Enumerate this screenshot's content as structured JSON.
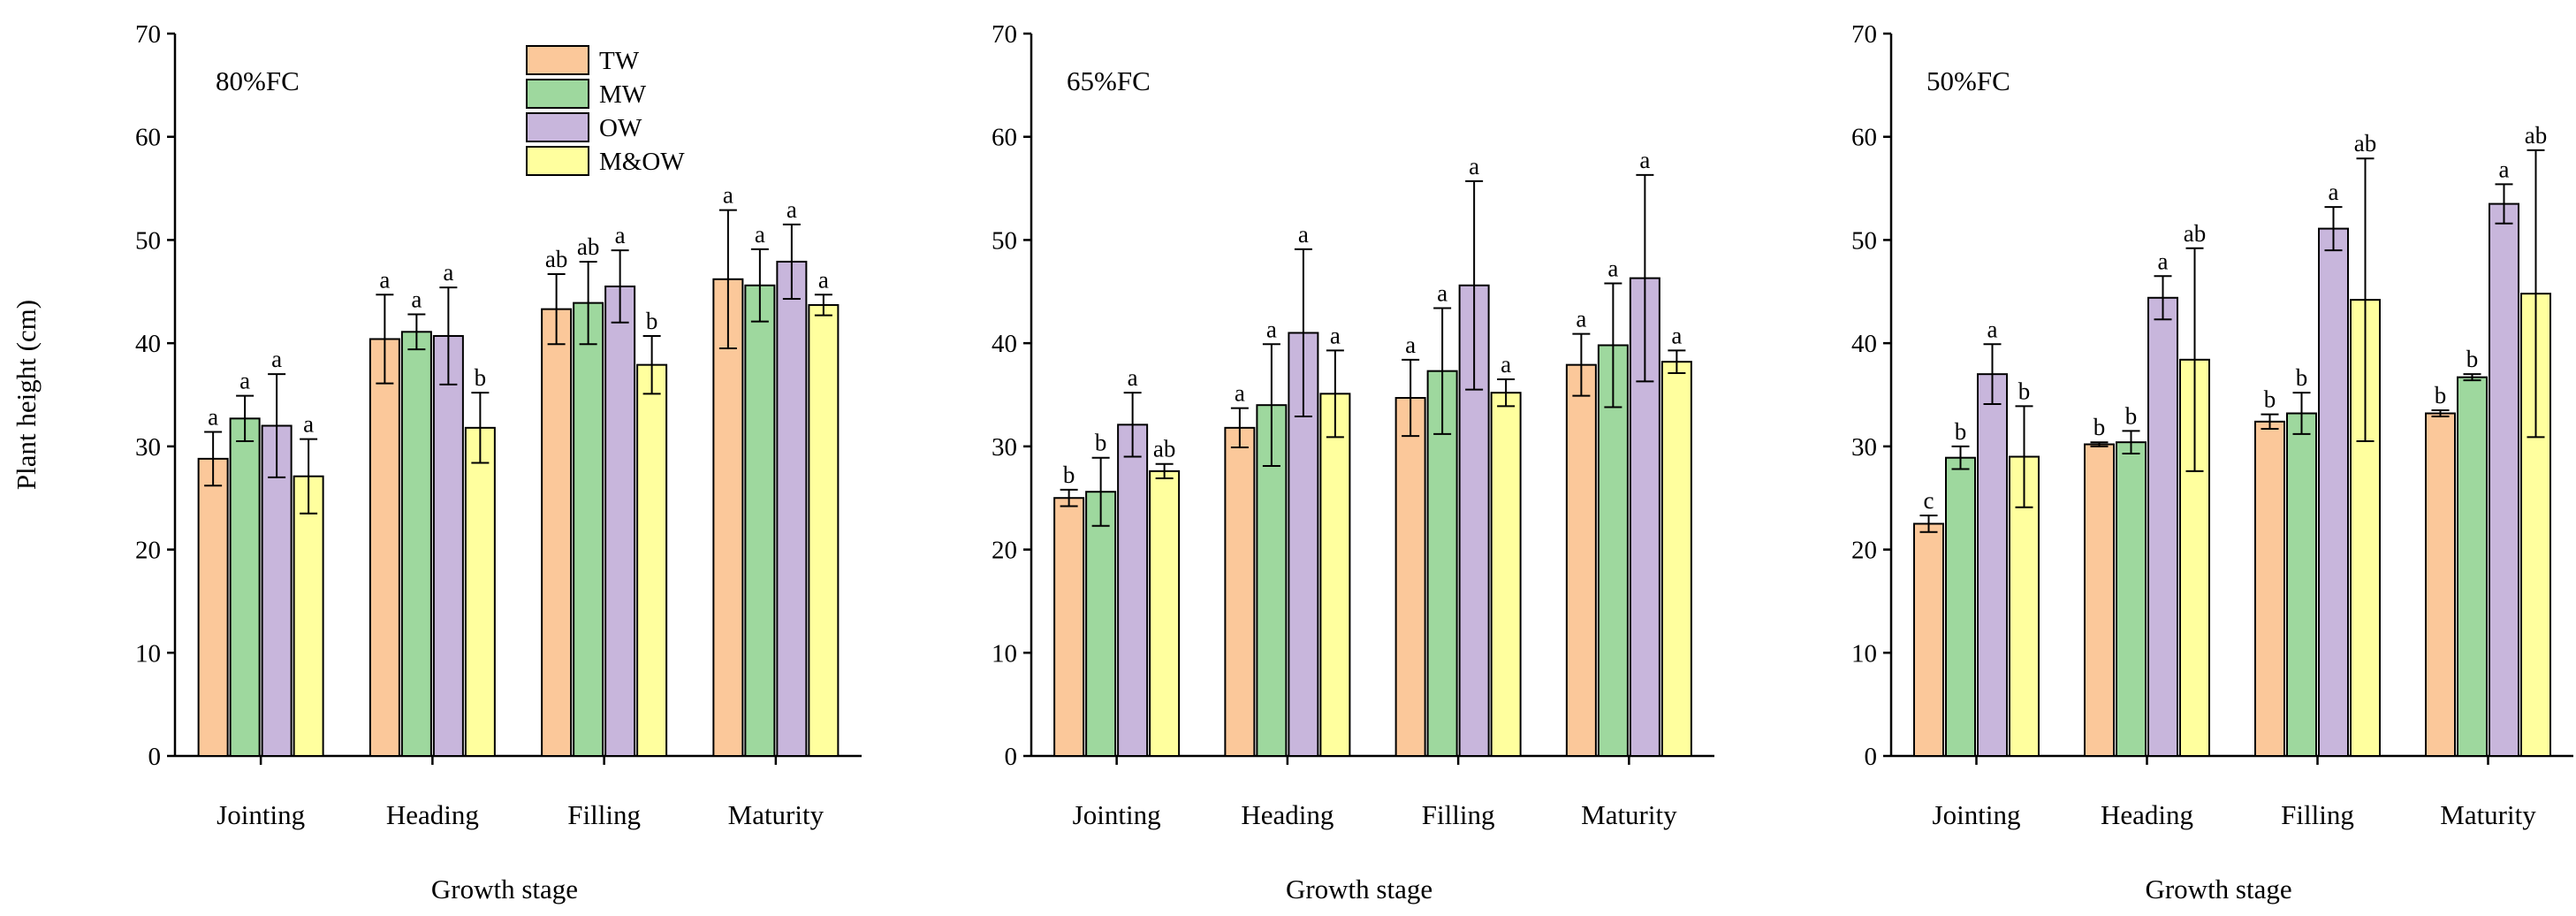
{
  "chart_data": {
    "type": "bar",
    "series": [
      {
        "name": "TW",
        "color": "#fbc89a"
      },
      {
        "name": "MW",
        "color": "#9ed89e"
      },
      {
        "name": "OW",
        "color": "#c8b6dc"
      },
      {
        "name": "M&OW",
        "color": "#ffff9e"
      }
    ],
    "categories": [
      "Jointing",
      "Heading",
      "Filling",
      "Maturity"
    ],
    "xlabel": "Growth stage",
    "ylabel": "Plant height (cm)",
    "ylim": [
      0,
      70
    ],
    "yticks": [
      0,
      10,
      20,
      30,
      40,
      50,
      60,
      70
    ],
    "legend_position": "top-left of first panel",
    "panels": [
      {
        "title": "80%FC",
        "values": [
          [
            28.8,
            32.7,
            32.0,
            27.1
          ],
          [
            40.4,
            41.1,
            40.7,
            31.8
          ],
          [
            43.3,
            43.9,
            45.5,
            37.9
          ],
          [
            46.2,
            45.6,
            47.9,
            43.7
          ]
        ],
        "errors": [
          [
            2.6,
            2.2,
            5.0,
            3.6
          ],
          [
            4.3,
            1.7,
            4.7,
            3.4
          ],
          [
            3.4,
            4.0,
            3.5,
            2.8
          ],
          [
            6.7,
            3.5,
            3.6,
            1.0
          ]
        ],
        "labels": [
          [
            "a",
            "a",
            "a",
            "a"
          ],
          [
            "a",
            "a",
            "a",
            "b"
          ],
          [
            "ab",
            "ab",
            "a",
            "b"
          ],
          [
            "a",
            "a",
            "a",
            "a"
          ]
        ]
      },
      {
        "title": "65%FC",
        "values": [
          [
            25.0,
            25.6,
            32.1,
            27.6
          ],
          [
            31.8,
            34.0,
            41.0,
            35.1
          ],
          [
            34.7,
            37.3,
            45.6,
            35.2
          ],
          [
            37.9,
            39.8,
            46.3,
            38.2
          ]
        ],
        "errors": [
          [
            0.8,
            3.3,
            3.1,
            0.7
          ],
          [
            1.9,
            5.9,
            8.1,
            4.2
          ],
          [
            3.7,
            6.1,
            10.1,
            1.3
          ],
          [
            3.0,
            6.0,
            10.0,
            1.1
          ]
        ],
        "labels": [
          [
            "b",
            "b",
            "a",
            "ab"
          ],
          [
            "a",
            "a",
            "a",
            "a"
          ],
          [
            "a",
            "a",
            "a",
            "a"
          ],
          [
            "a",
            "a",
            "a",
            "a"
          ]
        ]
      },
      {
        "title": "50%FC",
        "values": [
          [
            22.5,
            28.9,
            37.0,
            29.0
          ],
          [
            30.2,
            30.4,
            44.4,
            38.4
          ],
          [
            32.4,
            33.2,
            51.1,
            44.2
          ],
          [
            33.2,
            36.7,
            53.5,
            44.8
          ]
        ],
        "errors": [
          [
            0.8,
            1.1,
            2.9,
            4.9
          ],
          [
            0.2,
            1.1,
            2.1,
            10.8
          ],
          [
            0.7,
            2.0,
            2.1,
            13.7
          ],
          [
            0.3,
            0.3,
            1.9,
            13.9
          ]
        ],
        "labels": [
          [
            "c",
            "b",
            "a",
            "b"
          ],
          [
            "b",
            "b",
            "a",
            "ab"
          ],
          [
            "b",
            "b",
            "a",
            "ab"
          ],
          [
            "b",
            "b",
            "a",
            "ab"
          ]
        ]
      }
    ]
  }
}
